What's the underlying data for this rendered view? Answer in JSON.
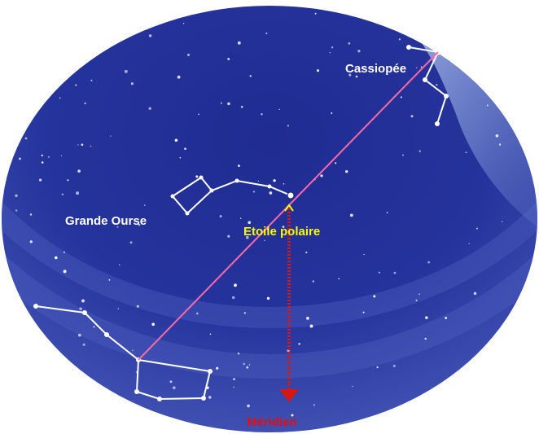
{
  "labels": {
    "cassiopee": "Cassiopée",
    "grande_ourse": "Grande Ourse",
    "etoile_polaire": "Etoile polaire",
    "meridien": "Méridien"
  },
  "colors": {
    "sky_outer": "#3a4fb0",
    "sky_inner": "#22309a",
    "milky_way": "#9fb4e6",
    "pointer_line": "#ff6aa8",
    "meridian_arrow": "#d41818",
    "label_white": "#ffffff",
    "label_yellow": "#ffff00",
    "label_red": "#e01010"
  }
}
